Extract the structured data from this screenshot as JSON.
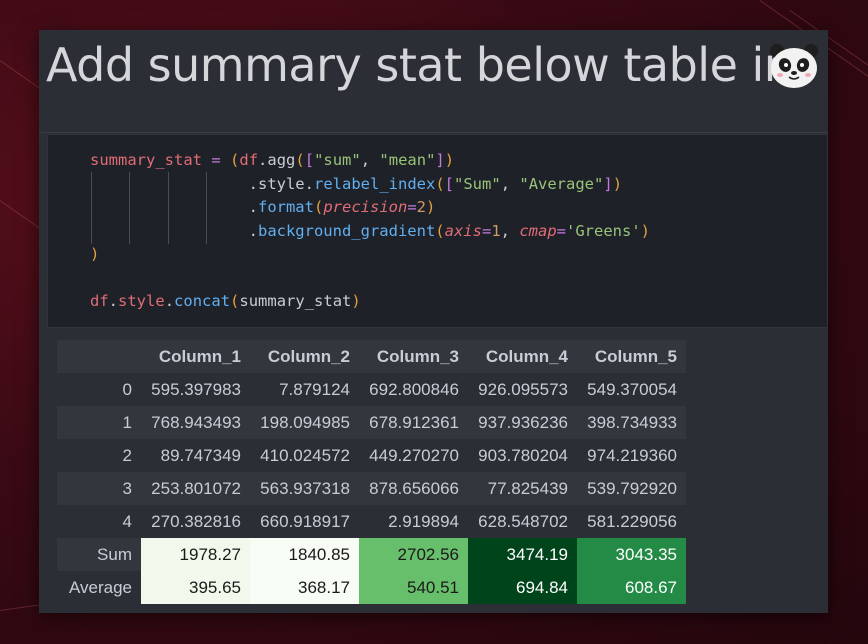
{
  "title": "Add summary stat below table in",
  "code": {
    "lines": [
      [
        [
          "t-var",
          "summary_stat"
        ],
        [
          "t-def",
          " "
        ],
        [
          "t-op",
          "="
        ],
        [
          "t-def",
          " "
        ],
        [
          "t-paren",
          "("
        ],
        [
          "t-var",
          "df"
        ],
        [
          "t-attr",
          "."
        ],
        [
          "t-attr",
          "agg"
        ],
        [
          "t-paren",
          "("
        ],
        [
          "t-brack",
          "["
        ],
        [
          "t-str",
          "\"sum\""
        ],
        [
          "t-attr",
          ", "
        ],
        [
          "t-str",
          "\"mean\""
        ],
        [
          "t-brack",
          "]"
        ],
        [
          "t-paren",
          ")"
        ]
      ],
      [
        [
          "t-def",
          "                 "
        ],
        [
          "t-attr",
          "."
        ],
        [
          "t-attr",
          "style"
        ],
        [
          "t-attr",
          "."
        ],
        [
          "t-method",
          "relabel_index"
        ],
        [
          "t-paren",
          "("
        ],
        [
          "t-brack",
          "["
        ],
        [
          "t-str",
          "\"Sum\""
        ],
        [
          "t-attr",
          ", "
        ],
        [
          "t-str",
          "\"Average\""
        ],
        [
          "t-brack",
          "]"
        ],
        [
          "t-paren",
          ")"
        ]
      ],
      [
        [
          "t-def",
          "                 "
        ],
        [
          "t-attr",
          "."
        ],
        [
          "t-method",
          "format"
        ],
        [
          "t-paren",
          "("
        ],
        [
          "t-kw",
          "precision"
        ],
        [
          "t-op",
          "="
        ],
        [
          "t-num",
          "2"
        ],
        [
          "t-paren",
          ")"
        ]
      ],
      [
        [
          "t-def",
          "                 "
        ],
        [
          "t-attr",
          "."
        ],
        [
          "t-method",
          "background_gradient"
        ],
        [
          "t-paren",
          "("
        ],
        [
          "t-kw",
          "axis"
        ],
        [
          "t-op",
          "="
        ],
        [
          "t-num",
          "1"
        ],
        [
          "t-attr",
          ", "
        ],
        [
          "t-kw",
          "cmap"
        ],
        [
          "t-op",
          "="
        ],
        [
          "t-str",
          "'Greens'"
        ],
        [
          "t-paren",
          ")"
        ]
      ],
      [
        [
          "t-paren",
          ")"
        ]
      ],
      [],
      [
        [
          "t-var",
          "df"
        ],
        [
          "t-attr",
          "."
        ],
        [
          "t-var",
          "style"
        ],
        [
          "t-attr",
          "."
        ],
        [
          "t-method",
          "concat"
        ],
        [
          "t-paren",
          "("
        ],
        [
          "t-attr",
          "summary_stat"
        ],
        [
          "t-paren",
          ")"
        ]
      ]
    ]
  },
  "table": {
    "columns": [
      "Column_1",
      "Column_2",
      "Column_3",
      "Column_4",
      "Column_5"
    ],
    "rows": [
      {
        "index": "0",
        "values": [
          "595.397983",
          "7.879124",
          "692.800846",
          "926.095573",
          "549.370054"
        ]
      },
      {
        "index": "1",
        "values": [
          "768.943493",
          "198.094985",
          "678.912361",
          "937.936236",
          "398.734933"
        ]
      },
      {
        "index": "2",
        "values": [
          "89.747349",
          "410.024572",
          "449.270270",
          "903.780204",
          "974.219360"
        ]
      },
      {
        "index": "3",
        "values": [
          "253.801072",
          "563.937318",
          "878.656066",
          "77.825439",
          "539.792920"
        ]
      },
      {
        "index": "4",
        "values": [
          "270.382816",
          "660.918917",
          "2.919894",
          "628.548702",
          "581.229056"
        ]
      }
    ],
    "summary": [
      {
        "index": "Sum",
        "values": [
          "1978.27",
          "1840.85",
          "2702.56",
          "3474.19",
          "3043.35"
        ],
        "colors": [
          "#f0f9ec",
          "#f7fcf5",
          "#67bf6b",
          "#00441b",
          "#238b45"
        ]
      },
      {
        "index": "Average",
        "values": [
          "395.65",
          "368.17",
          "540.51",
          "694.84",
          "608.67"
        ],
        "colors": [
          "#f0f9ec",
          "#f7fcf5",
          "#67bf6b",
          "#00441b",
          "#238b45"
        ]
      }
    ]
  }
}
